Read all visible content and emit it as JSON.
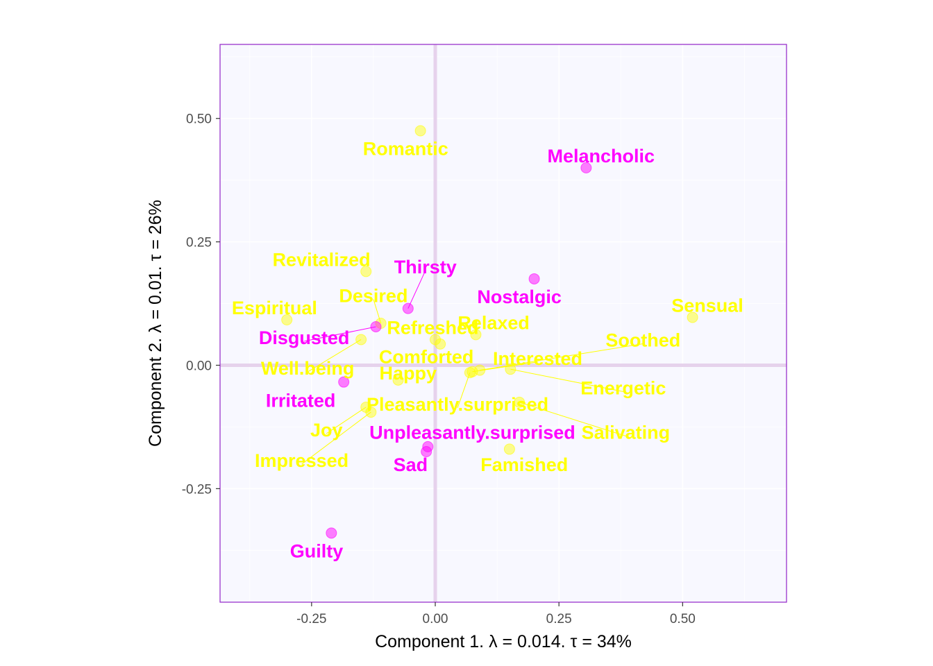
{
  "chart_data": {
    "type": "scatter",
    "title": "",
    "xlabel": "Component 1.   λ = 0.014.  τ = 34%",
    "ylabel": "Component 2.   λ = 0.01.  τ = 26%",
    "xlim": [
      -0.435,
      0.71
    ],
    "ylim": [
      -0.48,
      0.65
    ],
    "xticks": [
      -0.25,
      0.0,
      0.25,
      0.5
    ],
    "xtick_labels": [
      "-0.25",
      "0.00",
      "0.25",
      "0.50"
    ],
    "yticks": [
      -0.25,
      0.0,
      0.25,
      0.5
    ],
    "ytick_labels": [
      "-0.25",
      "0.00",
      "0.25",
      "0.50"
    ],
    "grid": true,
    "legend": "none",
    "colors": {
      "groupA": "#FFFF00",
      "groupB": "#FF00FF",
      "panel_bg": "#F8F8FF",
      "panel_border": "#9932CC",
      "origin_lines": "#E6D2EC"
    },
    "points": [
      {
        "label": "Romantic",
        "x": -0.03,
        "y": 0.475,
        "group": "A",
        "lx": -0.06,
        "ly": 0.44
      },
      {
        "label": "Melancholic",
        "x": 0.305,
        "y": 0.4,
        "group": "B",
        "lx": 0.335,
        "ly": 0.425
      },
      {
        "label": "Revitalized",
        "x": -0.14,
        "y": 0.19,
        "group": "A",
        "lx": -0.23,
        "ly": 0.215
      },
      {
        "label": "Thirsty",
        "x": -0.055,
        "y": 0.115,
        "group": "B",
        "lx": -0.02,
        "ly": 0.2,
        "line": true
      },
      {
        "label": "Nostalgic",
        "x": 0.2,
        "y": 0.175,
        "group": "B",
        "lx": 0.17,
        "ly": 0.14
      },
      {
        "label": "Desired",
        "x": -0.11,
        "y": 0.085,
        "group": "A",
        "lx": -0.125,
        "ly": 0.142,
        "line": true
      },
      {
        "label": "Espiritual",
        "x": -0.3,
        "y": 0.092,
        "group": "A",
        "lx": -0.325,
        "ly": 0.117
      },
      {
        "label": "Sensual",
        "x": 0.52,
        "y": 0.097,
        "group": "A",
        "lx": 0.55,
        "ly": 0.122
      },
      {
        "label": "Disgusted",
        "x": -0.12,
        "y": 0.078,
        "group": "B",
        "lx": -0.265,
        "ly": 0.057,
        "line": true
      },
      {
        "label": "Refreshed",
        "x": 0.0,
        "y": 0.052,
        "group": "A",
        "lx": -0.005,
        "ly": 0.077
      },
      {
        "label": "Relaxed",
        "x": 0.082,
        "y": 0.062,
        "group": "A",
        "lx": 0.118,
        "ly": 0.087
      },
      {
        "label": "Soothed",
        "x": 0.09,
        "y": -0.01,
        "group": "A",
        "lx": 0.42,
        "ly": 0.052,
        "line": true
      },
      {
        "label": "Comforted",
        "x": 0.01,
        "y": 0.043,
        "group": "A",
        "lx": -0.018,
        "ly": 0.018
      },
      {
        "label": "Interested",
        "x": 0.075,
        "y": -0.013,
        "group": "A",
        "lx": 0.207,
        "ly": 0.015,
        "line": true
      },
      {
        "label": "Well.being",
        "x": -0.15,
        "y": 0.052,
        "group": "A",
        "lx": -0.258,
        "ly": -0.005,
        "line": true
      },
      {
        "label": "Happy",
        "x": -0.075,
        "y": -0.03,
        "group": "A",
        "lx": -0.055,
        "ly": -0.015
      },
      {
        "label": "Energetic",
        "x": 0.152,
        "y": -0.008,
        "group": "A",
        "lx": 0.38,
        "ly": -0.045,
        "line": true
      },
      {
        "label": "Irritated",
        "x": -0.185,
        "y": -0.034,
        "group": "B",
        "lx": -0.272,
        "ly": -0.07
      },
      {
        "label": "Pleasantly.surprised",
        "x": 0.07,
        "y": -0.015,
        "group": "A",
        "lx": 0.045,
        "ly": -0.078,
        "line": true
      },
      {
        "label": "Joy",
        "x": -0.14,
        "y": -0.085,
        "group": "A",
        "lx": -0.22,
        "ly": -0.13,
        "line": true
      },
      {
        "label": "Unpleasantly.surprised",
        "x": -0.015,
        "y": -0.165,
        "group": "B",
        "lx": 0.075,
        "ly": -0.135
      },
      {
        "label": "Salivating",
        "x": 0.17,
        "y": -0.075,
        "group": "A",
        "lx": 0.385,
        "ly": -0.135,
        "line": true
      },
      {
        "label": "Impressed",
        "x": -0.13,
        "y": -0.095,
        "group": "A",
        "lx": -0.27,
        "ly": -0.192,
        "line": true
      },
      {
        "label": "Sad",
        "x": -0.018,
        "y": -0.175,
        "group": "B",
        "lx": -0.05,
        "ly": -0.2
      },
      {
        "label": "Famished",
        "x": 0.15,
        "y": -0.17,
        "group": "A",
        "lx": 0.18,
        "ly": -0.2
      },
      {
        "label": "Guilty",
        "x": -0.21,
        "y": -0.34,
        "group": "B",
        "lx": -0.24,
        "ly": -0.375
      }
    ]
  }
}
